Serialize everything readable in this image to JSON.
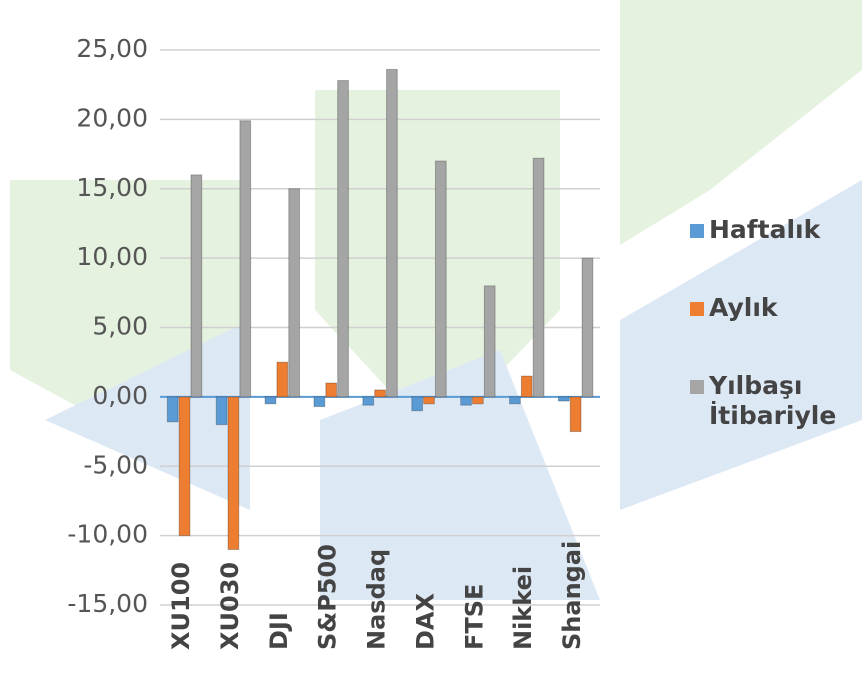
{
  "chart_data": {
    "type": "bar",
    "categories": [
      "XU100",
      "XU030",
      "DJI",
      "S&P500",
      "Nasdaq",
      "DAX",
      "FTSE",
      "Nikkei",
      "Shangai"
    ],
    "series": [
      {
        "name": "Haftalık",
        "color": "#5b9bd5",
        "values": [
          -1.8,
          -2,
          -0.5,
          -0.7,
          -0.6,
          -1,
          -0.6,
          -0.5,
          -0.3
        ]
      },
      {
        "name": "Aylık",
        "color": "#ed7d31",
        "values": [
          -10,
          -11,
          2.5,
          1,
          0.5,
          -0.5,
          -0.5,
          1.5,
          -2.5
        ]
      },
      {
        "name": "Yılbaşı İtibariyle",
        "color": "#a5a5a5",
        "values": [
          16,
          19.9,
          15,
          22.8,
          23.6,
          17,
          8,
          17.2,
          10
        ]
      }
    ],
    "ylim": [
      -15,
      25
    ],
    "yticks": [
      {
        "value": -15,
        "label": "-15,00"
      },
      {
        "value": -10,
        "label": "-10,00"
      },
      {
        "value": -5,
        "label": "-5,00"
      },
      {
        "value": 0,
        "label": "0,00"
      },
      {
        "value": 5,
        "label": "5,00"
      },
      {
        "value": 10,
        "label": "10,00"
      },
      {
        "value": 15,
        "label": "15,00"
      },
      {
        "value": 20,
        "label": "20,00"
      },
      {
        "value": 25,
        "label": "25,00"
      }
    ],
    "grid": true
  }
}
